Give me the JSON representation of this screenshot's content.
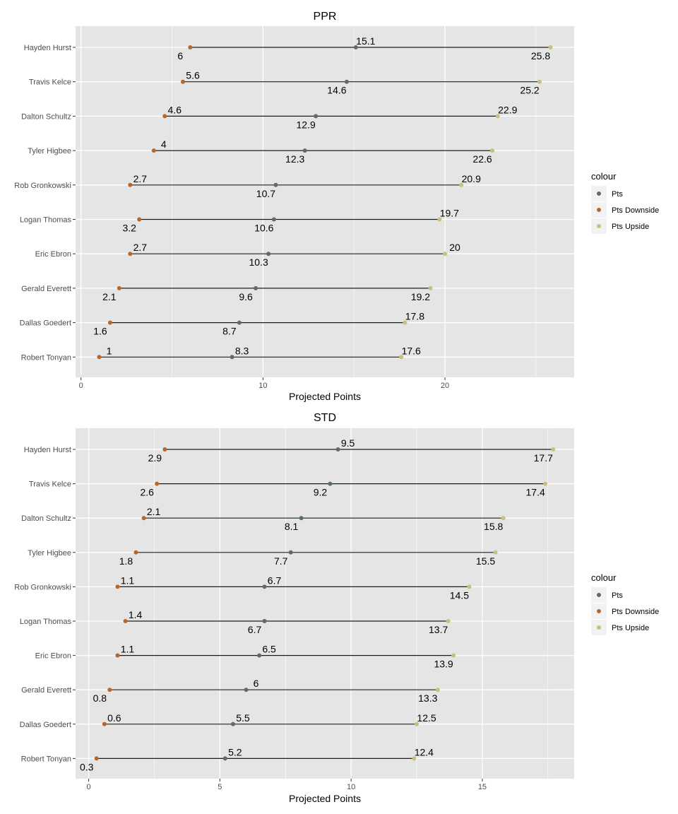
{
  "colors": {
    "panel_bg": "#e5e5e5",
    "grid": "#ffffff",
    "segment": "#1a1a1a",
    "Pts": "#5b6e63",
    "Pts Downside": "#b8672b",
    "Pts Upside": "#c9c07e"
  },
  "chart_data": [
    {
      "type": "dumbbell",
      "title": "PPR",
      "xlabel": "Projected Points",
      "ylabel": "",
      "xlim": [
        -0.3,
        27.1
      ],
      "x_ticks": [
        0,
        10,
        20
      ],
      "x_tick_labels": [
        "0",
        "10",
        "20"
      ],
      "grid": true,
      "legend": {
        "title": "colour",
        "position": "right",
        "entries": [
          "Pts",
          "Pts Downside",
          "Pts Upside"
        ]
      },
      "categories": [
        "Hayden Hurst",
        "Travis Kelce",
        "Dalton Schultz",
        "Tyler Higbee",
        "Rob Gronkowski",
        "Logan Thomas",
        "Eric Ebron",
        "Gerald Everett",
        "Dallas Goedert",
        "Robert Tonyan"
      ],
      "series": [
        {
          "name": "Pts Downside",
          "values": [
            6,
            5.6,
            4.6,
            4,
            2.7,
            3.2,
            2.7,
            2.1,
            1.6,
            1
          ]
        },
        {
          "name": "Pts",
          "values": [
            15.1,
            14.6,
            12.9,
            12.3,
            10.7,
            10.6,
            10.3,
            9.6,
            8.7,
            8.3
          ]
        },
        {
          "name": "Pts Upside",
          "values": [
            25.8,
            25.2,
            22.9,
            22.6,
            20.9,
            19.7,
            20,
            19.2,
            17.8,
            17.6
          ]
        }
      ],
      "labels": {
        "Pts Downside": [
          "6",
          "5.6",
          "4.6",
          "4",
          "2.7",
          "3.2",
          "2.7",
          "2.1",
          "1.6",
          "1"
        ],
        "Pts": [
          "15.1",
          "14.6",
          "12.9",
          "12.3",
          "10.7",
          "10.6",
          "10.3",
          "9.6",
          "8.7",
          "8.3"
        ],
        "Pts Upside": [
          "25.8",
          "25.2",
          "22.9",
          "22.6",
          "20.9",
          "19.7",
          "20",
          "19.2",
          "17.8",
          "17.6"
        ]
      },
      "label_side": {
        "Pts Downside": [
          "below",
          "above",
          "above",
          "above",
          "above",
          "below",
          "above",
          "below",
          "below",
          "above"
        ],
        "Pts": [
          "above",
          "below",
          "below",
          "below",
          "below",
          "below",
          "below",
          "below",
          "below",
          "above"
        ],
        "Pts Upside": [
          "below",
          "below",
          "above",
          "below",
          "above",
          "above",
          "above",
          "below",
          "above",
          "above"
        ]
      }
    },
    {
      "type": "dumbbell",
      "title": "STD",
      "xlabel": "Projected Points",
      "ylabel": "",
      "xlim": [
        -0.5,
        18.5
      ],
      "x_ticks": [
        0,
        5,
        10,
        15
      ],
      "x_tick_labels": [
        "0",
        "5",
        "10",
        "15"
      ],
      "grid": true,
      "legend": {
        "title": "colour",
        "position": "right",
        "entries": [
          "Pts",
          "Pts Downside",
          "Pts Upside"
        ]
      },
      "categories": [
        "Hayden Hurst",
        "Travis Kelce",
        "Dalton Schultz",
        "Tyler Higbee",
        "Rob Gronkowski",
        "Logan Thomas",
        "Eric Ebron",
        "Gerald Everett",
        "Dallas Goedert",
        "Robert Tonyan"
      ],
      "series": [
        {
          "name": "Pts Downside",
          "values": [
            2.9,
            2.6,
            2.1,
            1.8,
            1.1,
            1.4,
            1.1,
            0.8,
            0.6,
            0.3
          ]
        },
        {
          "name": "Pts",
          "values": [
            9.5,
            9.2,
            8.1,
            7.7,
            6.7,
            6.7,
            6.5,
            6,
            5.5,
            5.2
          ]
        },
        {
          "name": "Pts Upside",
          "values": [
            17.7,
            17.4,
            15.8,
            15.5,
            14.5,
            13.7,
            13.9,
            13.3,
            12.5,
            12.4
          ]
        }
      ],
      "labels": {
        "Pts Downside": [
          "2.9",
          "2.6",
          "2.1",
          "1.8",
          "1.1",
          "1.4",
          "1.1",
          "0.8",
          "0.6",
          "0.3"
        ],
        "Pts": [
          "9.5",
          "9.2",
          "8.1",
          "7.7",
          "6.7",
          "6.7",
          "6.5",
          "6",
          "5.5",
          "5.2"
        ],
        "Pts Upside": [
          "17.7",
          "17.4",
          "15.8",
          "15.5",
          "14.5",
          "13.7",
          "13.9",
          "13.3",
          "12.5",
          "12.4"
        ]
      },
      "label_side": {
        "Pts Downside": [
          "below",
          "below",
          "above",
          "below",
          "above",
          "above",
          "above",
          "below",
          "above",
          "below"
        ],
        "Pts": [
          "above",
          "below",
          "below",
          "below",
          "above",
          "below",
          "above",
          "above",
          "above",
          "above"
        ],
        "Pts Upside": [
          "below",
          "below",
          "below",
          "below",
          "below",
          "below",
          "below",
          "below",
          "above",
          "above"
        ]
      }
    }
  ]
}
